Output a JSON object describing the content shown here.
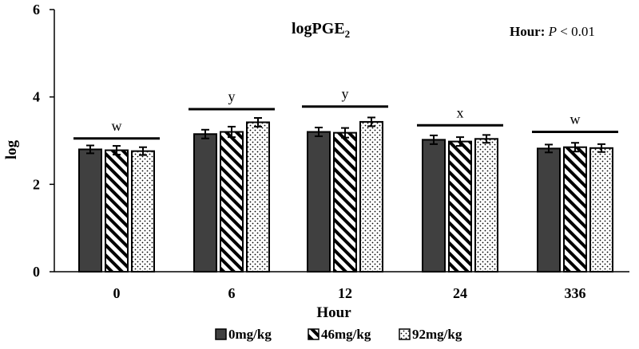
{
  "chart_data": {
    "type": "bar",
    "title": "logPGE",
    "title_subscript": "2",
    "annotation": {
      "bold_part": "Hour:",
      "italic_part": "P",
      "rest": "< 0.01"
    },
    "xlabel": "Hour",
    "ylabel": "log",
    "ylim": [
      0,
      6
    ],
    "yticks": [
      "0",
      "2",
      "4",
      "6"
    ],
    "categories": [
      "0",
      "6",
      "12",
      "24",
      "336"
    ],
    "series": [
      {
        "name": "0mg/kg",
        "pattern": "solid",
        "color": "#404040",
        "values": [
          2.8,
          3.15,
          3.2,
          3.02,
          2.82
        ],
        "errors": [
          0.09,
          0.1,
          0.1,
          0.1,
          0.09
        ]
      },
      {
        "name": "46mg/kg",
        "pattern": "diagonal-stripes",
        "color": "#000000",
        "values": [
          2.78,
          3.2,
          3.18,
          2.98,
          2.85
        ],
        "errors": [
          0.1,
          0.12,
          0.11,
          0.1,
          0.1
        ]
      },
      {
        "name": "92mg/kg",
        "pattern": "dots",
        "color": "#000000",
        "values": [
          2.76,
          3.42,
          3.43,
          3.04,
          2.83
        ],
        "errors": [
          0.09,
          0.1,
          0.1,
          0.09,
          0.09
        ]
      }
    ],
    "group_letters": [
      "w",
      "y",
      "y",
      "x",
      "w"
    ],
    "group_bar_levels": [
      3.05,
      3.72,
      3.78,
      3.35,
      3.2
    ],
    "legend_position": "bottom",
    "grid": false
  }
}
